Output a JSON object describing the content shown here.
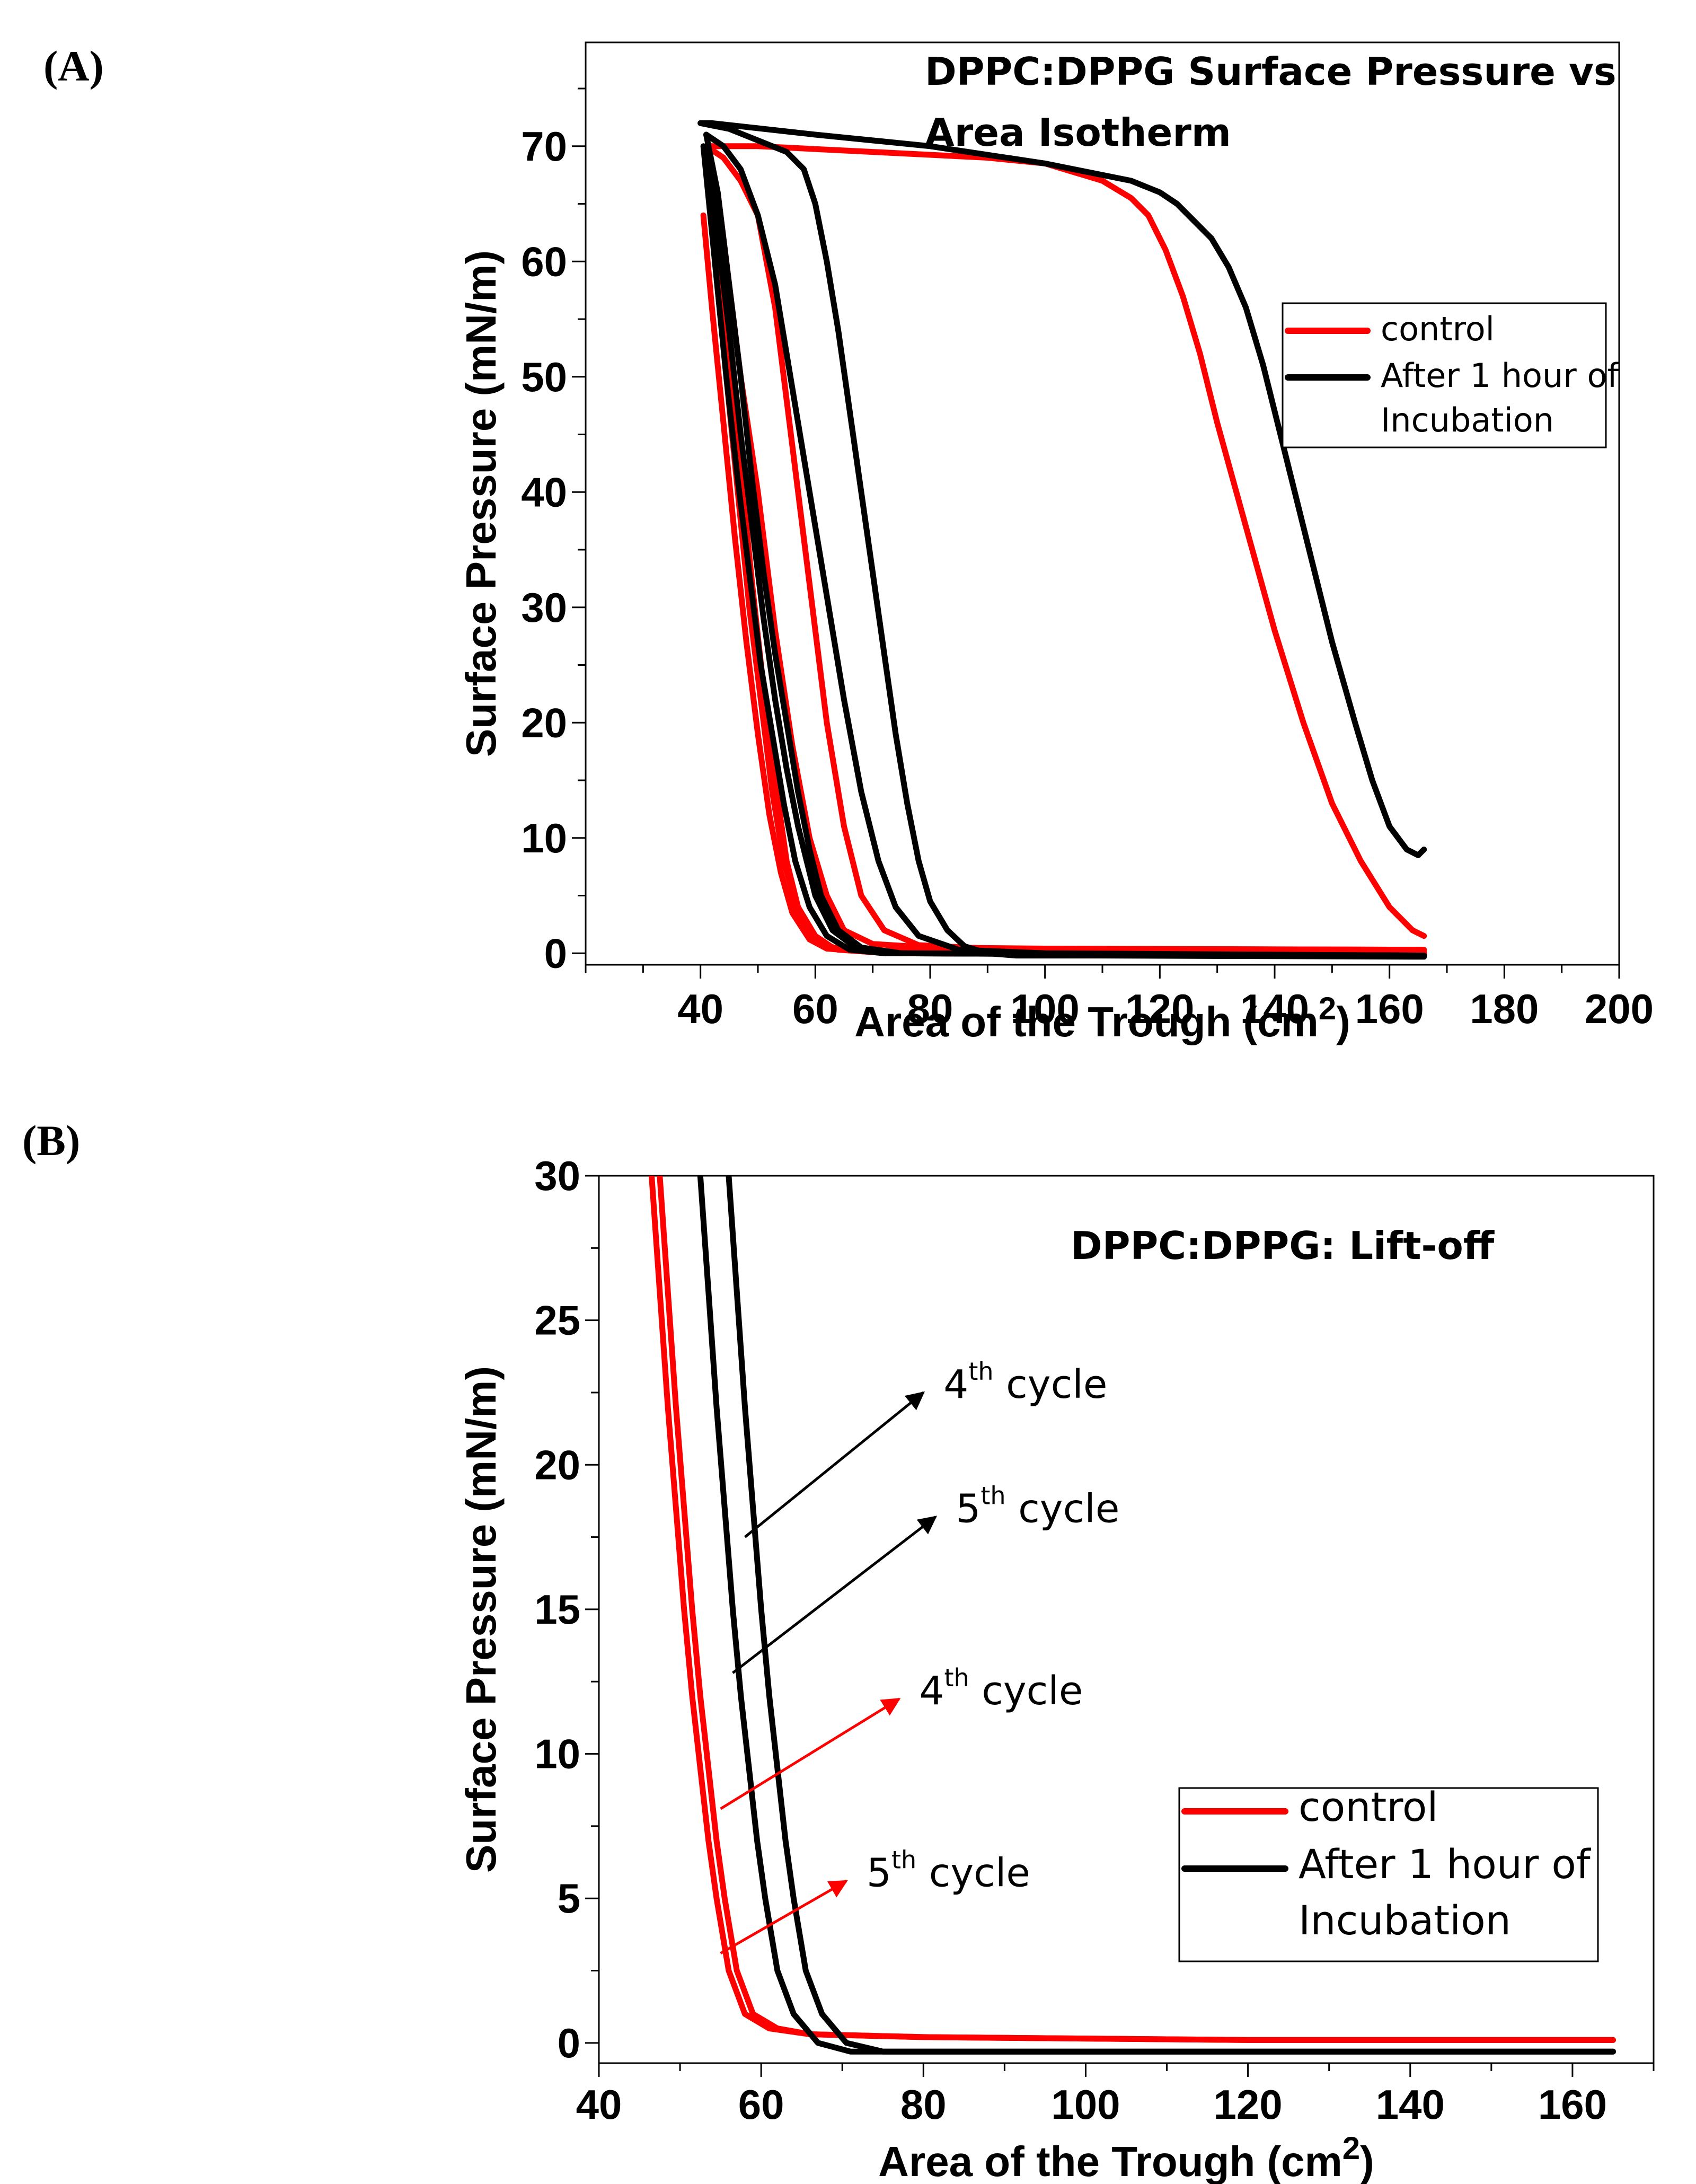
{
  "panel_labels": {
    "a": "(A)",
    "b": "(B)"
  },
  "colors": {
    "control": "#ff0000",
    "incubated": "#000000"
  },
  "chart_data": [
    {
      "id": "A",
      "type": "line",
      "title_lines": [
        "DPPC:DPPG Surface Pressure vs",
        "Area Isotherm"
      ],
      "xlabel": "Area of the Trough (cm",
      "xlabel_sup": "2",
      "xlabel_end": ")",
      "ylabel": "Surface Pressure (mN/m)",
      "xlim": [
        20,
        200
      ],
      "ylim": [
        -1,
        79
      ],
      "xticks": [
        40,
        60,
        80,
        100,
        120,
        140,
        160,
        180,
        200
      ],
      "yticks": [
        0,
        10,
        20,
        30,
        40,
        50,
        60,
        70
      ],
      "legend": {
        "position": "right",
        "entries": [
          {
            "lines": [
              "control"
            ],
            "color": "#ff0000"
          },
          {
            "lines": [
              "After 1 hour of",
              "Incubation"
            ],
            "color": "#000000"
          }
        ]
      },
      "series": [
        {
          "name": "control",
          "color": "#ff0000",
          "x": [
            166,
            164,
            160,
            155,
            150,
            145,
            140,
            135,
            130,
            127,
            124,
            121,
            118,
            115,
            110,
            100,
            90,
            70,
            50,
            44,
            41
          ],
          "y": [
            1.5,
            2,
            4,
            8,
            13,
            20,
            28,
            37,
            46,
            52,
            57,
            61,
            64,
            65.5,
            67,
            68.5,
            69,
            69.5,
            70,
            70,
            70
          ]
        },
        {
          "name": "control",
          "color": "#ff0000",
          "x": [
            41,
            43,
            45,
            47,
            50,
            53,
            56,
            59,
            62,
            65,
            70,
            80,
            100,
            166
          ],
          "y": [
            70,
            66,
            58,
            50,
            40,
            28,
            18,
            10,
            5,
            2,
            0.8,
            0.5,
            0.4,
            0.3
          ]
        },
        {
          "name": "control",
          "color": "#ff0000",
          "x": [
            41,
            44,
            47,
            50,
            53,
            56,
            59,
            62,
            65,
            68,
            72,
            78,
            90,
            166
          ],
          "y": [
            70,
            69,
            67,
            64,
            56,
            44,
            32,
            20,
            11,
            5,
            2,
            0.7,
            0.4,
            0.3
          ]
        },
        {
          "name": "control",
          "color": "#ff0000",
          "x": [
            41,
            43,
            45,
            47,
            49,
            51,
            53,
            55,
            57,
            60,
            63,
            70,
            166
          ],
          "y": [
            70,
            62,
            52,
            42,
            32,
            23,
            15,
            8,
            4,
            1.5,
            0.5,
            0.2,
            0.1
          ]
        },
        {
          "name": "control",
          "color": "#ff0000",
          "x": [
            40.5,
            42,
            44,
            46,
            48,
            50,
            52,
            54,
            56,
            59,
            62,
            70,
            166
          ],
          "y": [
            64,
            56,
            46,
            36,
            27,
            19,
            12,
            7,
            3.5,
            1.2,
            0.4,
            0.1,
            0
          ]
        },
        {
          "name": "control",
          "color": "#ff0000",
          "x": [
            41,
            42.5,
            44.5,
            46.5,
            48.5,
            50.5,
            52.5,
            54.5,
            57,
            60,
            64,
            70,
            166
          ],
          "y": [
            70,
            60,
            50,
            40,
            30,
            22,
            14,
            8,
            3.5,
            1.2,
            0.3,
            0.1,
            0
          ]
        },
        {
          "name": "After 1 hour of Incubation",
          "color": "#000000",
          "x": [
            166,
            165,
            163,
            160,
            157,
            154,
            150,
            146,
            142,
            138,
            135,
            132,
            129,
            126,
            123,
            120,
            115,
            110,
            100,
            80,
            60,
            42,
            40
          ],
          "y": [
            9,
            8.5,
            9,
            11,
            15,
            20,
            27,
            35,
            43,
            51,
            56,
            59.5,
            62,
            63.5,
            65,
            66,
            67,
            67.5,
            68.5,
            70,
            71,
            72,
            72
          ]
        },
        {
          "name": "After 1 hour of Incubation",
          "color": "#000000",
          "x": [
            40,
            45,
            50,
            55,
            58,
            60,
            62,
            64,
            66,
            68,
            70,
            72,
            74,
            76,
            78,
            80,
            83,
            86,
            90,
            95,
            110,
            166
          ],
          "y": [
            72,
            71.5,
            70.5,
            69.5,
            68,
            65,
            60,
            54,
            47,
            40,
            33,
            26,
            19,
            13,
            8,
            4.5,
            2,
            0.6,
            0,
            -0.2,
            -0.2,
            -0.3
          ]
        },
        {
          "name": "After 1 hour of Incubation",
          "color": "#000000",
          "x": [
            41,
            44,
            47,
            50,
            53,
            56,
            59,
            62,
            65,
            68,
            71,
            74,
            78,
            85,
            100,
            166
          ],
          "y": [
            71,
            70,
            68,
            64,
            58,
            49,
            40,
            31,
            22,
            14,
            8,
            4,
            1.5,
            0.3,
            0,
            -0.2
          ]
        },
        {
          "name": "After 1 hour of Incubation",
          "color": "#000000",
          "x": [
            41,
            43,
            45,
            47,
            49,
            51,
            53,
            55,
            57,
            59,
            61,
            64,
            68,
            75,
            166
          ],
          "y": [
            71,
            66,
            58,
            50,
            41,
            33,
            26,
            20,
            14,
            9,
            5,
            2,
            0.5,
            0,
            -0.2
          ]
        },
        {
          "name": "After 1 hour of Incubation",
          "color": "#000000",
          "x": [
            41,
            43,
            45,
            47,
            49,
            51,
            53,
            55,
            57,
            60,
            63,
            67,
            72,
            166
          ],
          "y": [
            70,
            62,
            54,
            45,
            37,
            29,
            22,
            16,
            11,
            5,
            2,
            0.5,
            0,
            -0.2
          ]
        },
        {
          "name": "After 1 hour of Incubation",
          "color": "#000000",
          "x": [
            40.5,
            42.5,
            44.5,
            46.5,
            48.5,
            50.5,
            52.5,
            54.5,
            56.5,
            59,
            62,
            66,
            72,
            166
          ],
          "y": [
            70,
            60,
            50,
            41,
            33,
            25,
            19,
            13,
            8,
            4,
            1.5,
            0.3,
            0,
            -0.2
          ]
        }
      ]
    },
    {
      "id": "B",
      "type": "line",
      "title_lines": [
        "DPPC:DPPG: Lift-off"
      ],
      "xlabel": "Area of the Trough (cm",
      "xlabel_sup": "2",
      "xlabel_end": ")",
      "ylabel": "Surface Pressure (mN/m)",
      "xlim": [
        40,
        170
      ],
      "ylim": [
        -0.7,
        30
      ],
      "xticks": [
        40,
        60,
        80,
        100,
        120,
        140,
        160
      ],
      "yticks": [
        0,
        5,
        10,
        15,
        20,
        25,
        30
      ],
      "legend": {
        "position": "lower-right",
        "entries": [
          {
            "lines": [
              "control"
            ],
            "color": "#ff0000"
          },
          {
            "lines": [
              "After 1 hour of",
              "Incubation"
            ],
            "color": "#000000"
          }
        ]
      },
      "annotations": [
        {
          "num": "4",
          "sup": "th",
          "rest": "cycle",
          "color": "#000000",
          "from": [
            58,
            17.5
          ],
          "to": [
            80,
            22.5
          ]
        },
        {
          "num": "5",
          "sup": "th",
          "rest": "cycle",
          "color": "#000000",
          "from": [
            56.5,
            12.8
          ],
          "to": [
            81.5,
            18.2
          ]
        },
        {
          "num": "4",
          "sup": "th",
          "rest": "cycle",
          "color": "#ff0000",
          "from": [
            55,
            8.1
          ],
          "to": [
            77,
            11.9
          ]
        },
        {
          "num": "5",
          "sup": "th",
          "rest": "cycle",
          "color": "#ff0000",
          "from": [
            55,
            3.1
          ],
          "to": [
            70.5,
            5.6
          ]
        }
      ],
      "series": [
        {
          "name": "control",
          "color": "#ff0000",
          "x": [
            46.5,
            47.5,
            48.5,
            49.5,
            50.5,
            51.5,
            52.5,
            53.5,
            54.5,
            56,
            58,
            61,
            66,
            80,
            120,
            165
          ],
          "y": [
            30,
            26,
            22,
            18.5,
            15,
            12,
            9.5,
            7,
            5,
            2.5,
            1,
            0.5,
            0.3,
            0.2,
            0.1,
            0.1
          ]
        },
        {
          "name": "control",
          "color": "#ff0000",
          "x": [
            47.5,
            48.5,
            49.5,
            50.5,
            51.5,
            52.5,
            53.5,
            54.5,
            55.5,
            57,
            59,
            62,
            66,
            80,
            120,
            165
          ],
          "y": [
            30,
            26,
            22,
            18.5,
            15,
            12,
            9.5,
            7,
            5,
            2.5,
            1,
            0.5,
            0.3,
            0.2,
            0.1,
            0.1
          ]
        },
        {
          "name": "After 1 hour of Incubation",
          "color": "#000000",
          "x": [
            52.5,
            53.5,
            54.5,
            55.5,
            56.5,
            57.5,
            58.5,
            59.5,
            60.5,
            62,
            64,
            67,
            71,
            80,
            120,
            165
          ],
          "y": [
            30,
            26,
            22,
            18.5,
            15,
            12,
            9.5,
            7,
            5,
            2.5,
            1,
            0,
            -0.3,
            -0.3,
            -0.3,
            -0.3
          ]
        },
        {
          "name": "After 1 hour of Incubation",
          "color": "#000000",
          "x": [
            56,
            57,
            58,
            59,
            60,
            61,
            62,
            63,
            64,
            65.5,
            67.5,
            70.5,
            75,
            90,
            130,
            165
          ],
          "y": [
            30,
            26,
            22,
            18.5,
            15,
            12,
            9.5,
            7,
            5,
            2.5,
            1,
            0,
            -0.3,
            -0.3,
            -0.3,
            -0.3
          ]
        }
      ]
    }
  ]
}
